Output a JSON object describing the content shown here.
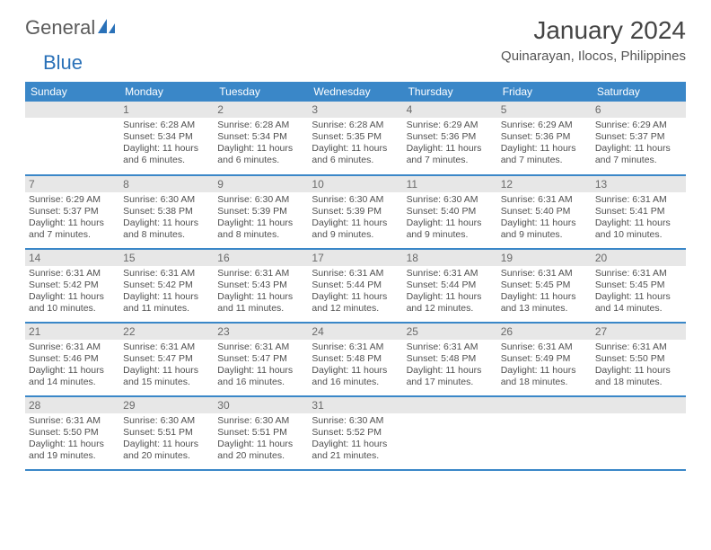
{
  "logo": {
    "text1": "General",
    "text2": "Blue"
  },
  "title": "January 2024",
  "location": "Quinarayan, Ilocos, Philippines",
  "colors": {
    "header_bg": "#3a87c8",
    "header_text": "#ffffff",
    "daynum_bg": "#e7e7e7",
    "daynum_text": "#6a6a6a",
    "body_text": "#505050",
    "rule": "#3a87c8",
    "logo_gray": "#5b5b5b",
    "logo_blue": "#2a71b8"
  },
  "weekdays": [
    "Sunday",
    "Monday",
    "Tuesday",
    "Wednesday",
    "Thursday",
    "Friday",
    "Saturday"
  ],
  "weeks": [
    [
      {
        "day": null
      },
      {
        "day": "1",
        "sunrise": "6:28 AM",
        "sunset": "5:34 PM",
        "daylight": "11 hours and 6 minutes."
      },
      {
        "day": "2",
        "sunrise": "6:28 AM",
        "sunset": "5:34 PM",
        "daylight": "11 hours and 6 minutes."
      },
      {
        "day": "3",
        "sunrise": "6:28 AM",
        "sunset": "5:35 PM",
        "daylight": "11 hours and 6 minutes."
      },
      {
        "day": "4",
        "sunrise": "6:29 AM",
        "sunset": "5:36 PM",
        "daylight": "11 hours and 7 minutes."
      },
      {
        "day": "5",
        "sunrise": "6:29 AM",
        "sunset": "5:36 PM",
        "daylight": "11 hours and 7 minutes."
      },
      {
        "day": "6",
        "sunrise": "6:29 AM",
        "sunset": "5:37 PM",
        "daylight": "11 hours and 7 minutes."
      }
    ],
    [
      {
        "day": "7",
        "sunrise": "6:29 AM",
        "sunset": "5:37 PM",
        "daylight": "11 hours and 7 minutes."
      },
      {
        "day": "8",
        "sunrise": "6:30 AM",
        "sunset": "5:38 PM",
        "daylight": "11 hours and 8 minutes."
      },
      {
        "day": "9",
        "sunrise": "6:30 AM",
        "sunset": "5:39 PM",
        "daylight": "11 hours and 8 minutes."
      },
      {
        "day": "10",
        "sunrise": "6:30 AM",
        "sunset": "5:39 PM",
        "daylight": "11 hours and 9 minutes."
      },
      {
        "day": "11",
        "sunrise": "6:30 AM",
        "sunset": "5:40 PM",
        "daylight": "11 hours and 9 minutes."
      },
      {
        "day": "12",
        "sunrise": "6:31 AM",
        "sunset": "5:40 PM",
        "daylight": "11 hours and 9 minutes."
      },
      {
        "day": "13",
        "sunrise": "6:31 AM",
        "sunset": "5:41 PM",
        "daylight": "11 hours and 10 minutes."
      }
    ],
    [
      {
        "day": "14",
        "sunrise": "6:31 AM",
        "sunset": "5:42 PM",
        "daylight": "11 hours and 10 minutes."
      },
      {
        "day": "15",
        "sunrise": "6:31 AM",
        "sunset": "5:42 PM",
        "daylight": "11 hours and 11 minutes."
      },
      {
        "day": "16",
        "sunrise": "6:31 AM",
        "sunset": "5:43 PM",
        "daylight": "11 hours and 11 minutes."
      },
      {
        "day": "17",
        "sunrise": "6:31 AM",
        "sunset": "5:44 PM",
        "daylight": "11 hours and 12 minutes."
      },
      {
        "day": "18",
        "sunrise": "6:31 AM",
        "sunset": "5:44 PM",
        "daylight": "11 hours and 12 minutes."
      },
      {
        "day": "19",
        "sunrise": "6:31 AM",
        "sunset": "5:45 PM",
        "daylight": "11 hours and 13 minutes."
      },
      {
        "day": "20",
        "sunrise": "6:31 AM",
        "sunset": "5:45 PM",
        "daylight": "11 hours and 14 minutes."
      }
    ],
    [
      {
        "day": "21",
        "sunrise": "6:31 AM",
        "sunset": "5:46 PM",
        "daylight": "11 hours and 14 minutes."
      },
      {
        "day": "22",
        "sunrise": "6:31 AM",
        "sunset": "5:47 PM",
        "daylight": "11 hours and 15 minutes."
      },
      {
        "day": "23",
        "sunrise": "6:31 AM",
        "sunset": "5:47 PM",
        "daylight": "11 hours and 16 minutes."
      },
      {
        "day": "24",
        "sunrise": "6:31 AM",
        "sunset": "5:48 PM",
        "daylight": "11 hours and 16 minutes."
      },
      {
        "day": "25",
        "sunrise": "6:31 AM",
        "sunset": "5:48 PM",
        "daylight": "11 hours and 17 minutes."
      },
      {
        "day": "26",
        "sunrise": "6:31 AM",
        "sunset": "5:49 PM",
        "daylight": "11 hours and 18 minutes."
      },
      {
        "day": "27",
        "sunrise": "6:31 AM",
        "sunset": "5:50 PM",
        "daylight": "11 hours and 18 minutes."
      }
    ],
    [
      {
        "day": "28",
        "sunrise": "6:31 AM",
        "sunset": "5:50 PM",
        "daylight": "11 hours and 19 minutes."
      },
      {
        "day": "29",
        "sunrise": "6:30 AM",
        "sunset": "5:51 PM",
        "daylight": "11 hours and 20 minutes."
      },
      {
        "day": "30",
        "sunrise": "6:30 AM",
        "sunset": "5:51 PM",
        "daylight": "11 hours and 20 minutes."
      },
      {
        "day": "31",
        "sunrise": "6:30 AM",
        "sunset": "5:52 PM",
        "daylight": "11 hours and 21 minutes."
      },
      {
        "day": null
      },
      {
        "day": null
      },
      {
        "day": null
      }
    ]
  ],
  "labels": {
    "sunrise": "Sunrise: ",
    "sunset": "Sunset: ",
    "daylight": "Daylight: "
  }
}
